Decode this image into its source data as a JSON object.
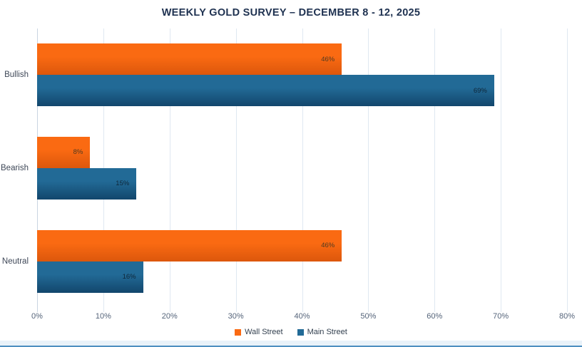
{
  "chart_data": {
    "type": "bar",
    "orientation": "horizontal",
    "title": "WEEKLY GOLD SURVEY – DECEMBER 8 - 12, 2025",
    "categories": [
      "Bullish",
      "Bearish",
      "Neutral"
    ],
    "series": [
      {
        "name": "Wall Street",
        "values": [
          46,
          8,
          46
        ],
        "color": "#fa6a12",
        "color_dark": "#dc570c",
        "label_color": "#4f3a22"
      },
      {
        "name": "Main Street",
        "values": [
          69,
          15,
          16
        ],
        "color": "#226a96",
        "color_dark": "#12466c",
        "label_color": "#0f2638"
      }
    ],
    "xlim": [
      0,
      80
    ],
    "x_ticks": [
      "0%",
      "10%",
      "20%",
      "30%",
      "40%",
      "50%",
      "60%",
      "70%",
      "80%"
    ],
    "value_suffix": "%",
    "grid": true,
    "legend_position": "bottom"
  },
  "colors": {
    "title": "#1e3150",
    "axis_label": "#55647a",
    "category_label": "#3e4757",
    "gridline": "#dfe8f1",
    "axis_line": "#c9d5e2",
    "background": "#ffffff",
    "bottom_strip_bg": "#e9f2f9",
    "bottom_strip_border": "#4e8fc0"
  }
}
